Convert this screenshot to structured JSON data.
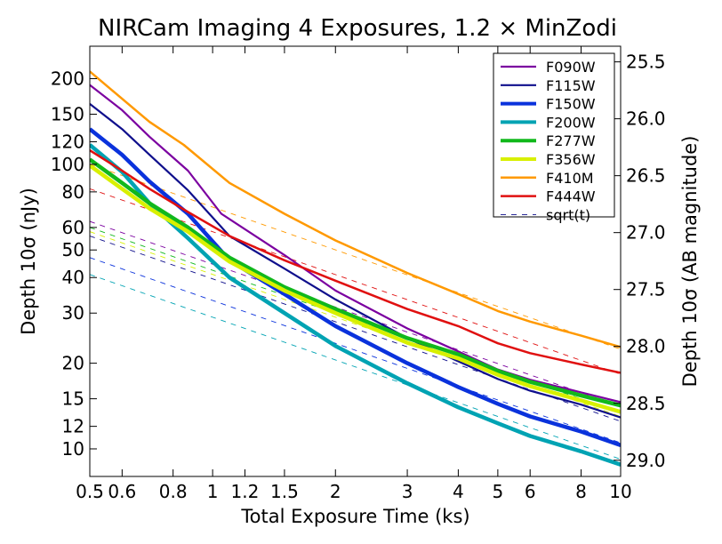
{
  "chart_data": {
    "type": "line",
    "title": "NIRCam Imaging 4 Exposures, 1.2 × MinZodi",
    "xlabel": "Total Exposure Time (ks)",
    "ylabel": "Depth 10σ (nJy)",
    "ylabel_right": "Depth 10σ (AB magnitude)",
    "x_scale": "log",
    "y_scale": "log",
    "xlim": [
      0.5,
      10
    ],
    "ylim": [
      8,
      260
    ],
    "right_axis_ab_mag_ticks": [
      "25.5",
      "26.0",
      "26.5",
      "27.0",
      "27.5",
      "28.0",
      "28.5",
      "29.0"
    ],
    "x_ticks": [
      "0.5",
      "0.6",
      "0.8",
      "1",
      "1.2",
      "1.5",
      "2",
      "3",
      "4",
      "5",
      "6",
      "8",
      "10"
    ],
    "y_ticks": [
      "10",
      "12",
      "15",
      "20",
      "30",
      "40",
      "50",
      "60",
      "80",
      "100",
      "120",
      "150",
      "200"
    ],
    "legend_position": "top-right",
    "series": [
      {
        "name": "F090W",
        "color": "#7b00a0",
        "width": 2.2,
        "x": [
          0.5,
          0.6,
          0.7,
          0.87,
          1.05,
          1.5,
          2,
          3,
          4,
          5,
          6,
          8,
          10
        ],
        "values": [
          190,
          155,
          125,
          95,
          67,
          48,
          36,
          26.5,
          22,
          19,
          17.5,
          15.8,
          14.6
        ]
      },
      {
        "name": "F115W",
        "color": "#0f0f8c",
        "width": 2.2,
        "x": [
          0.5,
          0.6,
          0.7,
          0.87,
          1.1,
          1.5,
          2,
          3,
          4,
          5,
          6,
          8,
          10
        ],
        "values": [
          163,
          133,
          108,
          81,
          56,
          43,
          33.5,
          24.5,
          20.3,
          17.6,
          16,
          14.3,
          12.9
        ]
      },
      {
        "name": "F150W",
        "color": "#0a32dc",
        "width": 4.5,
        "x": [
          0.5,
          0.6,
          0.7,
          0.87,
          1.1,
          1.5,
          2,
          3,
          4,
          5,
          6,
          8,
          10
        ],
        "values": [
          133,
          108,
          87,
          67,
          46,
          35,
          27,
          20,
          16.5,
          14.4,
          13,
          11.5,
          10.3
        ]
      },
      {
        "name": "F200W",
        "color": "#00a3b3",
        "width": 4.5,
        "x": [
          0.5,
          0.6,
          0.7,
          0.87,
          1.1,
          1.5,
          2,
          3,
          4,
          5,
          6,
          8,
          10
        ],
        "values": [
          117,
          94,
          73,
          55,
          40,
          30,
          23,
          17,
          14,
          12.3,
          11.1,
          9.8,
          8.8
        ]
      },
      {
        "name": "F277W",
        "color": "#11b81c",
        "width": 4.5,
        "x": [
          0.5,
          0.6,
          0.7,
          0.87,
          1.1,
          1.5,
          2,
          3,
          4,
          5,
          6,
          8,
          10
        ],
        "values": [
          104,
          86,
          73,
          60,
          47,
          37,
          31,
          24.5,
          21.5,
          18.8,
          17.2,
          15.4,
          14.2
        ]
      },
      {
        "name": "F356W",
        "color": "#d8f000",
        "width": 4.5,
        "x": [
          0.5,
          0.6,
          0.7,
          0.87,
          1.1,
          1.5,
          2,
          3,
          4,
          5,
          6,
          8,
          10
        ],
        "values": [
          99,
          82,
          70,
          58,
          45.5,
          36,
          30,
          23.6,
          20.8,
          18.2,
          16.6,
          14.8,
          13.5
        ]
      },
      {
        "name": "F410M",
        "color": "#ff9900",
        "width": 2.5,
        "x": [
          0.5,
          0.6,
          0.7,
          0.85,
          1.1,
          1.5,
          2,
          3,
          4,
          5,
          6,
          8,
          10
        ],
        "values": [
          212,
          170,
          141,
          117,
          86,
          67,
          54,
          41.5,
          35,
          30.5,
          28,
          25,
          22.8
        ]
      },
      {
        "name": "F444W",
        "color": "#e01010",
        "width": 2.5,
        "x": [
          0.5,
          0.6,
          0.7,
          0.87,
          1.1,
          1.5,
          2,
          3,
          4,
          5,
          6,
          8,
          10
        ],
        "values": [
          112,
          95,
          82,
          68,
          56,
          46,
          39,
          31,
          27,
          23.5,
          21.7,
          19.8,
          18.5
        ]
      }
    ],
    "reference": {
      "name": "sqrt(t)",
      "style": "dashed",
      "width": 0.9,
      "lines": [
        {
          "color": "#7b00a0",
          "x": [
            0.5,
            10
          ],
          "values": [
            63,
            14.1
          ]
        },
        {
          "color": "#0f0f8c",
          "x": [
            0.5,
            10
          ],
          "values": [
            56,
            12.5
          ]
        },
        {
          "color": "#0a32dc",
          "x": [
            0.5,
            10
          ],
          "values": [
            47,
            10.5
          ]
        },
        {
          "color": "#00a3b3",
          "x": [
            0.5,
            10
          ],
          "values": [
            41,
            9.2
          ]
        },
        {
          "color": "#11b81c",
          "x": [
            0.5,
            10
          ],
          "values": [
            60,
            13.4
          ]
        },
        {
          "color": "#d8f000",
          "x": [
            0.5,
            10
          ],
          "values": [
            58,
            13.0
          ]
        },
        {
          "color": "#ff9900",
          "x": [
            0.5,
            10
          ],
          "values": [
            100,
            22.4
          ]
        },
        {
          "color": "#e01010",
          "x": [
            0.5,
            10
          ],
          "values": [
            82,
            18.3
          ]
        }
      ],
      "legend_color": "#0f0f8c"
    }
  }
}
